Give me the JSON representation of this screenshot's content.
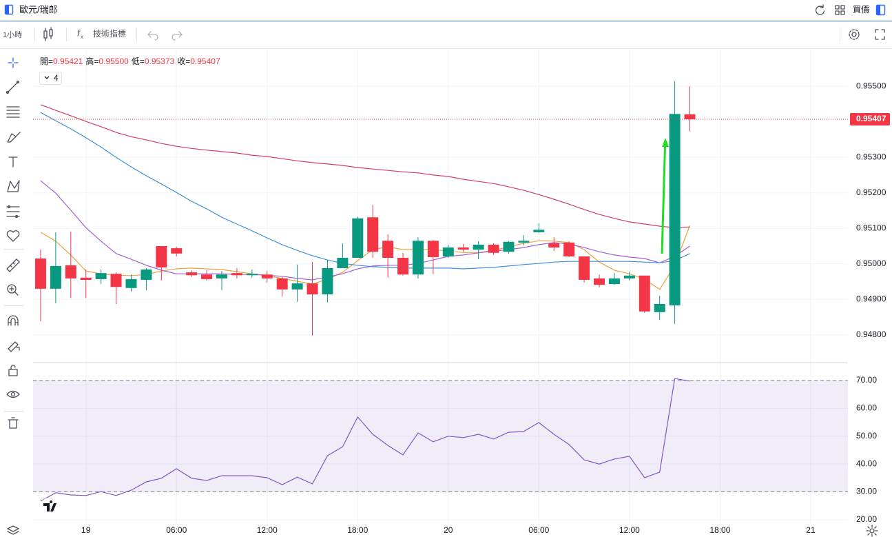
{
  "header": {
    "symbol": "歐元/瑞郎",
    "quote": "買價"
  },
  "toolbar": {
    "interval": "1小時",
    "indicators": "技術指標"
  },
  "chart_data": [
    {
      "type": "candlestick",
      "categories": [
        null,
        null,
        null,
        "19",
        null,
        null,
        null,
        null,
        null,
        "06:00",
        null,
        null,
        null,
        null,
        null,
        "12:00",
        null,
        null,
        null,
        null,
        null,
        "18:00",
        null,
        null,
        null,
        null,
        null,
        "20",
        null,
        null,
        null,
        null,
        null,
        "06:00",
        null,
        null,
        null,
        null,
        null,
        "12:00",
        null,
        null,
        null,
        null,
        null,
        "18:00",
        null,
        null,
        null,
        null,
        null,
        "21",
        null,
        null
      ],
      "open": [
        0.95015,
        0.9493,
        0.94996,
        0.94961,
        0.94957,
        0.94972,
        0.94932,
        0.94955,
        0.9505,
        0.95044,
        0.94976,
        0.9497,
        0.94959,
        0.94974,
        0.94968,
        0.9497,
        0.94959,
        0.94928,
        0.94945,
        0.94914,
        0.94988,
        0.95017,
        0.95131,
        0.95065,
        0.95017,
        0.9497,
        0.95065,
        0.95021,
        0.95046,
        0.9504,
        0.95054,
        0.95034,
        0.9506,
        0.95089,
        0.95058,
        0.9506,
        0.95021,
        0.94959,
        0.94943,
        0.94959,
        0.94967,
        0.94864,
        0.94883,
        0.95421,
        null,
        null,
        null,
        null,
        null,
        null,
        null,
        null,
        null,
        null
      ],
      "high": [
        0.9504,
        0.95089,
        0.95091,
        0.94984,
        0.94984,
        0.94976,
        0.9497,
        0.94988,
        0.9505,
        0.95048,
        0.94982,
        0.94982,
        0.9498,
        0.94988,
        0.94984,
        0.9498,
        0.94963,
        0.94998,
        0.95005,
        0.95011,
        0.95058,
        0.95133,
        0.95166,
        0.95083,
        0.95031,
        0.95075,
        0.95067,
        0.95054,
        0.95056,
        0.95064,
        0.95058,
        0.95064,
        0.95081,
        0.95114,
        0.95075,
        0.95064,
        0.95021,
        0.9497,
        0.94974,
        0.94978,
        0.94967,
        0.9491,
        0.95514,
        0.955,
        null,
        null,
        null,
        null,
        null,
        null,
        null,
        null,
        null,
        null
      ],
      "low": [
        0.94838,
        0.94889,
        0.94904,
        0.94904,
        0.94943,
        0.94887,
        0.94922,
        0.94926,
        0.94953,
        0.95021,
        0.94963,
        0.94953,
        0.94926,
        0.94959,
        0.94961,
        0.94947,
        0.94908,
        0.94893,
        0.94798,
        0.94891,
        0.94988,
        0.95017,
        0.95017,
        0.94961,
        0.94967,
        0.94959,
        0.94972,
        0.95017,
        0.95034,
        0.95013,
        0.95025,
        0.95029,
        0.95052,
        0.95087,
        0.95036,
        0.95019,
        0.94947,
        0.94934,
        0.94941,
        0.94953,
        0.94862,
        0.94842,
        0.94831,
        0.95373,
        null,
        null,
        null,
        null,
        null,
        null,
        null,
        null,
        null,
        null
      ],
      "close": [
        0.9493,
        0.94994,
        0.94959,
        0.94955,
        0.94974,
        0.94935,
        0.94957,
        0.94984,
        0.9499,
        0.95029,
        0.94968,
        0.94957,
        0.9497,
        0.94968,
        0.94972,
        0.94959,
        0.94928,
        0.94945,
        0.94914,
        0.94988,
        0.95017,
        0.95128,
        0.95034,
        0.95017,
        0.9497,
        0.95065,
        0.95019,
        0.95046,
        0.9504,
        0.95054,
        0.95031,
        0.95062,
        0.95065,
        0.95096,
        0.95046,
        0.95021,
        0.94955,
        0.94941,
        0.94959,
        0.94967,
        0.94866,
        0.94887,
        0.95422,
        0.95407,
        null,
        null,
        null,
        null,
        null,
        null,
        null,
        null,
        null,
        null
      ],
      "up_color": "#089981",
      "down_color": "#f23645",
      "series": [
        {
          "color": "#e8a33d",
          "values": [
            0.95089,
            0.95064,
            0.95025,
            0.9498,
            0.94972,
            0.94968,
            0.94967,
            0.9497,
            0.9498,
            0.94986,
            0.94988,
            0.94986,
            0.94984,
            0.94978,
            0.94972,
            0.94967,
            0.94959,
            0.94951,
            0.94943,
            0.94957,
            0.94976,
            0.95009,
            0.9504,
            0.95048,
            0.9504,
            0.9504,
            0.9504,
            0.95036,
            0.95032,
            0.95032,
            0.95038,
            0.95048,
            0.95058,
            0.95065,
            0.95064,
            0.9506,
            0.9504,
            0.95005,
            0.94982,
            0.94972,
            0.94957,
            0.94928,
            0.94996,
            0.95108,
            null,
            null,
            null,
            null,
            null,
            null,
            null,
            null,
            null,
            null
          ]
        },
        {
          "color": "#a05fd4",
          "values": [
            0.95234,
            0.95199,
            0.95151,
            0.95102,
            0.95064,
            0.95029,
            0.95013,
            0.94996,
            0.94982,
            0.94972,
            0.94972,
            0.94972,
            0.94972,
            0.9497,
            0.9497,
            0.94968,
            0.94965,
            0.94959,
            0.94955,
            0.94963,
            0.94972,
            0.94986,
            0.94994,
            0.94996,
            0.94996,
            0.95001,
            0.95011,
            0.95021,
            0.95025,
            0.95031,
            0.95036,
            0.9504,
            0.95046,
            0.95054,
            0.9506,
            0.95056,
            0.95046,
            0.95034,
            0.95025,
            0.95019,
            0.95015,
            0.95003,
            0.95021,
            0.9505,
            null,
            null,
            null,
            null,
            null,
            null,
            null,
            null,
            null,
            null
          ]
        },
        {
          "color": "#3f8fdc",
          "values": [
            0.95426,
            0.95403,
            0.9538,
            0.95355,
            0.95329,
            0.953,
            0.95273,
            0.95248,
            0.95225,
            0.95201,
            0.95176,
            0.95155,
            0.95131,
            0.95112,
            0.95093,
            0.95073,
            0.95054,
            0.95038,
            0.95023,
            0.95011,
            0.95001,
            0.94996,
            0.94992,
            0.9499,
            0.94988,
            0.94988,
            0.94988,
            0.94988,
            0.94986,
            0.94988,
            0.9499,
            0.94994,
            0.94998,
            0.95001,
            0.95005,
            0.95007,
            0.95007,
            0.95007,
            0.95007,
            0.95007,
            0.95005,
            0.95003,
            0.95009,
            0.95029,
            null,
            null,
            null,
            null,
            null,
            null,
            null,
            null,
            null,
            null
          ]
        },
        {
          "color": "#d23c5e",
          "values": [
            0.95448,
            0.95432,
            0.95417,
            0.95401,
            0.95386,
            0.9537,
            0.95358,
            0.95349,
            0.95339,
            0.95331,
            0.95325,
            0.9532,
            0.95316,
            0.95312,
            0.95306,
            0.95302,
            0.95296,
            0.9529,
            0.95285,
            0.95281,
            0.95277,
            0.95271,
            0.95267,
            0.95263,
            0.95259,
            0.95256,
            0.9525,
            0.95246,
            0.95238,
            0.95232,
            0.95226,
            0.95217,
            0.95207,
            0.95195,
            0.95182,
            0.95168,
            0.95153,
            0.95139,
            0.95128,
            0.95118,
            0.95112,
            0.95106,
            0.95102,
            0.95104,
            null,
            null,
            null,
            null,
            null,
            null,
            null,
            null,
            null,
            null
          ]
        }
      ],
      "ohlc_legend": [
        {
          "label": "開=",
          "value": "0.95421"
        },
        {
          "label": "高=",
          "value": "0.95500"
        },
        {
          "label": "低=",
          "value": "0.95373"
        },
        {
          "label": "收=",
          "value": "0.95407"
        }
      ],
      "indicator_count": "4",
      "ylim": [
        0.94724,
        0.95603
      ],
      "yticks": [
        {
          "value": 0.955,
          "label": "0.95500"
        },
        {
          "value": 0.953,
          "label": "0.95300"
        },
        {
          "value": 0.952,
          "label": "0.95200"
        },
        {
          "value": 0.951,
          "label": "0.95100"
        },
        {
          "value": 0.95,
          "label": "0.95000"
        },
        {
          "value": 0.949,
          "label": "0.94900"
        },
        {
          "value": 0.948,
          "label": "0.94800"
        }
      ],
      "last_price": {
        "value": 0.95407,
        "label": "0.95407"
      },
      "grid": true
    },
    {
      "type": "line",
      "values": [
        26.7,
        29.7,
        28.9,
        28.7,
        30.1,
        28.7,
        30.6,
        33.6,
        34.9,
        38.3,
        34.9,
        34.1,
        35.8,
        35.8,
        35.8,
        35.1,
        32.6,
        35.3,
        32.9,
        43,
        46.2,
        56.9,
        50.7,
        46.7,
        43.3,
        51.2,
        48,
        50,
        49.5,
        50.7,
        49,
        51.4,
        51.7,
        54.9,
        50.7,
        47,
        41.5,
        40,
        41.8,
        42.8,
        35.1,
        37.1,
        70.7,
        69.8,
        null,
        null,
        null,
        null,
        null,
        null,
        null,
        null,
        null,
        null
      ],
      "color": "#7e57c2",
      "band": [
        30,
        70
      ],
      "ylim": [
        18.5,
        76.2
      ],
      "yticks": [
        {
          "value": 70,
          "label": "70.00"
        },
        {
          "value": 60,
          "label": "60.00"
        },
        {
          "value": 50,
          "label": "50.00"
        },
        {
          "value": 40,
          "label": "40.00"
        },
        {
          "value": 30,
          "label": "30.00"
        },
        {
          "value": 20,
          "label": "20.00"
        }
      ],
      "grid": true
    }
  ]
}
